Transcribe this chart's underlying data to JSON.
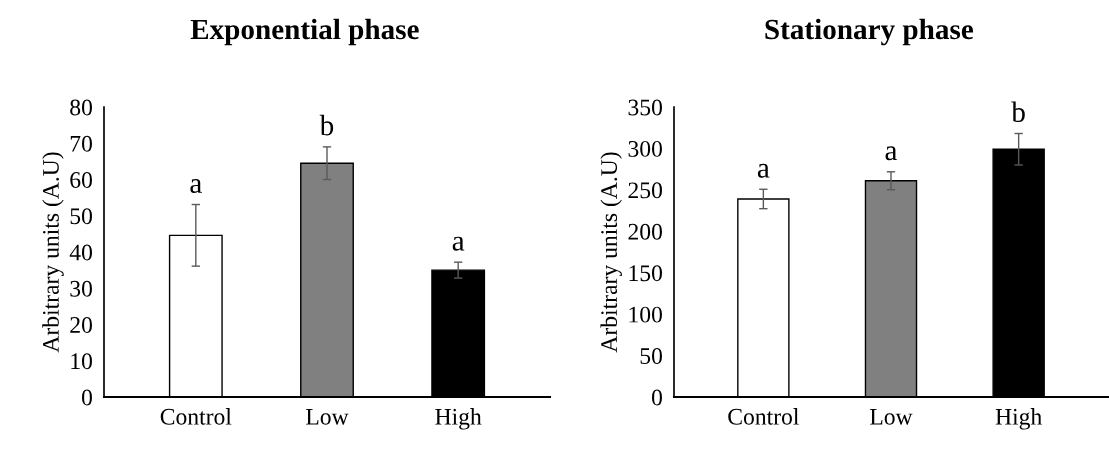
{
  "chart_data": [
    {
      "type": "bar",
      "title": "Exponential phase",
      "ylabel": "Arbitrary units (A.U)",
      "categories": [
        "Control",
        "Low",
        "High"
      ],
      "values": [
        44.6,
        64.5,
        35.0
      ],
      "colors": [
        "#ffffff",
        "#808080",
        "#000000"
      ],
      "errors": [
        8.5,
        4.5,
        2.2
      ],
      "ylim": [
        0,
        80
      ],
      "yticks": [
        0,
        10,
        20,
        30,
        40,
        50,
        60,
        70,
        80
      ],
      "grid": false,
      "annotations": [
        "a",
        "b",
        "a"
      ]
    },
    {
      "type": "bar",
      "title": "Stationary phase",
      "ylabel": "Arbitrary units (A.U)",
      "categories": [
        "Control",
        "Low",
        "High"
      ],
      "values": [
        239,
        261,
        299
      ],
      "colors": [
        "#ffffff",
        "#808080",
        "#000000"
      ],
      "errors": [
        11.7,
        10.8,
        19
      ],
      "ylim": [
        0,
        350
      ],
      "yticks": [
        0,
        50,
        100,
        150,
        200,
        250,
        300,
        350
      ],
      "grid": false,
      "annotations": [
        "a",
        "a",
        "b"
      ]
    }
  ]
}
